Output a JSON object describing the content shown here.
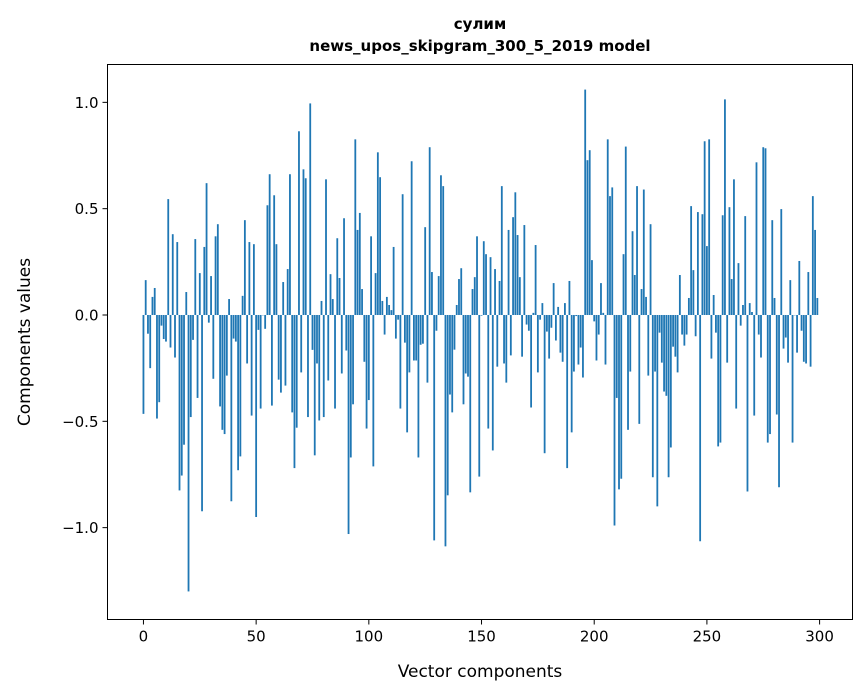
{
  "chart_data": {
    "type": "bar",
    "title": "сулим",
    "subtitle": "news_upos_skipgram_300_5_2019 model",
    "xlabel": "Vector components",
    "ylabel": "Components values",
    "xlim": [
      -15.95,
      314.6
    ],
    "ylim": [
      -1.432,
      1.178
    ],
    "xticks": [
      0,
      50,
      100,
      150,
      200,
      250,
      300
    ],
    "xtick_labels": [
      "0",
      "50",
      "100",
      "150",
      "200",
      "250",
      "300"
    ],
    "yticks": [
      -1.0,
      -0.5,
      0.0,
      0.5,
      1.0
    ],
    "ytick_labels": [
      "−1.0",
      "−0.5",
      "0.0",
      "0.5",
      "1.0"
    ],
    "grid": false,
    "bar_color": "#1f77b4",
    "values": [
      -0.465,
      0.164,
      -0.088,
      -0.25,
      0.085,
      0.127,
      -0.487,
      -0.41,
      -0.05,
      -0.113,
      -0.125,
      0.545,
      -0.153,
      0.38,
      -0.2,
      0.343,
      -0.825,
      -0.755,
      -0.61,
      0.108,
      -1.3,
      -0.48,
      -0.117,
      0.357,
      -0.39,
      0.197,
      -0.923,
      0.32,
      0.62,
      -0.036,
      0.183,
      -0.3,
      0.37,
      0.427,
      -0.43,
      -0.54,
      -0.56,
      -0.285,
      0.075,
      -0.876,
      -0.111,
      -0.125,
      -0.73,
      -0.665,
      0.09,
      0.446,
      -0.228,
      0.343,
      -0.473,
      0.333,
      -0.95,
      -0.07,
      -0.44,
      0.0,
      -0.065,
      0.516,
      0.662,
      -0.426,
      0.563,
      0.333,
      -0.304,
      -0.365,
      0.155,
      -0.332,
      0.216,
      0.662,
      -0.458,
      -0.72,
      -0.53,
      0.864,
      -0.27,
      0.685,
      0.643,
      -0.48,
      0.995,
      -0.164,
      -0.66,
      -0.228,
      -0.496,
      0.066,
      -0.48,
      0.638,
      -0.308,
      0.192,
      0.075,
      -0.44,
      0.361,
      0.174,
      -0.275,
      0.455,
      -0.167,
      -1.03,
      -0.67,
      -0.42,
      0.826,
      0.4,
      0.48,
      0.122,
      -0.22,
      -0.534,
      -0.4,
      0.37,
      -0.712,
      0.197,
      0.765,
      0.648,
      0.066,
      -0.092,
      0.085,
      0.047,
      0.023,
      0.32,
      -0.111,
      -0.022,
      -0.44,
      0.568,
      -0.13,
      -0.552,
      -0.27,
      0.723,
      -0.214,
      -0.214,
      -0.67,
      -0.14,
      -0.135,
      0.413,
      -0.318,
      0.789,
      0.202,
      -1.06,
      -0.074,
      0.183,
      0.657,
      0.606,
      -1.088,
      -0.848,
      -0.374,
      -0.458,
      -0.163,
      0.047,
      0.169,
      0.22,
      -0.42,
      -0.275,
      -0.29,
      -0.834,
      0.122,
      0.178,
      0.37,
      -0.76,
      -0.003,
      0.347,
      0.286,
      -0.534,
      0.272,
      -0.637,
      0.216,
      -0.243,
      0.16,
      0.606,
      -0.228,
      -0.318,
      0.4,
      -0.19,
      0.46,
      0.577,
      0.376,
      0.178,
      -0.196,
      0.423,
      -0.045,
      -0.074,
      -0.435,
      0.01,
      0.329,
      -0.27,
      -0.022,
      0.056,
      -0.65,
      -0.078,
      -0.205,
      -0.06,
      0.15,
      -0.12,
      0.038,
      -0.177,
      -0.22,
      0.056,
      -0.72,
      0.16,
      -0.552,
      -0.266,
      -0.005,
      -0.233,
      -0.153,
      -0.294,
      1.06,
      0.728,
      0.775,
      0.258,
      -0.03,
      -0.214,
      -0.092,
      0.15,
      0.01,
      -0.233,
      0.826,
      0.559,
      0.6,
      -0.99,
      -0.39,
      -0.82,
      -0.77,
      0.286,
      0.792,
      -0.54,
      -0.266,
      0.394,
      0.188,
      0.606,
      -0.512,
      0.122,
      0.59,
      0.085,
      -0.285,
      0.427,
      -0.763,
      -0.266,
      -0.9,
      -0.083,
      -0.224,
      -0.36,
      -0.38,
      -0.763,
      -0.623,
      -0.149,
      -0.196,
      -0.27,
      0.188,
      -0.092,
      -0.144,
      -0.092,
      0.08,
      0.512,
      0.211,
      -0.1,
      0.484,
      -1.064,
      0.474,
      0.817,
      0.324,
      0.826,
      -0.205,
      0.094,
      -0.083,
      -0.618,
      -0.6,
      0.469,
      1.014,
      -0.224,
      0.507,
      0.169,
      0.638,
      -0.44,
      0.244,
      -0.05,
      0.047,
      0.465,
      -0.83,
      0.056,
      0.014,
      -0.473,
      0.718,
      -0.092,
      -0.2,
      0.789,
      0.784,
      -0.6,
      -0.56,
      0.446,
      0.08,
      -0.468,
      -0.81,
      0.498,
      -0.158,
      -0.106,
      -0.224,
      0.164,
      -0.6,
      0.0,
      -0.177,
      0.254,
      -0.074,
      -0.22,
      -0.228,
      0.202,
      -0.243,
      0.559,
      0.4,
      0.08
    ]
  }
}
